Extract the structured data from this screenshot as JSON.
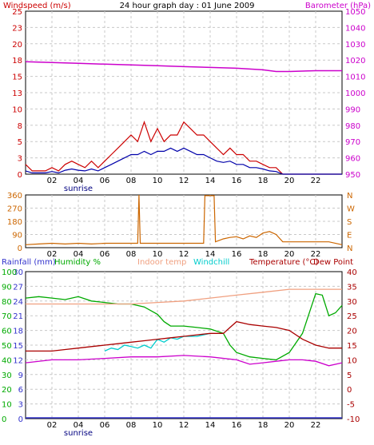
{
  "title": "24 hour graph day : 01 June 2009",
  "sunrise_label": "sunrise",
  "x_ticks": [
    "02",
    "04",
    "06",
    "08",
    "10",
    "12",
    "14",
    "16",
    "18",
    "20",
    "22"
  ],
  "colors": {
    "wind": "#cc0000",
    "gust": "#cc0000",
    "avg": "#0000aa",
    "baro": "#cc00cc",
    "dir": "#cc6600",
    "rain": "#3333cc",
    "humidity": "#00aa00",
    "indoor": "#f0a080",
    "windchill": "#00cccc",
    "temperature": "#aa0000",
    "dewpoint": "#cc00cc",
    "grid": "#c8c8c8",
    "axis_left": "#cc6600"
  },
  "chart_data": [
    {
      "type": "line",
      "panel": "wind_baro",
      "left_label": "Windspeed (m/s)",
      "right_label": "Barometer (hPa)",
      "left_ticks": [
        "0",
        "3",
        "5",
        "8",
        "10",
        "13",
        "15",
        "18",
        "20",
        "23",
        "25"
      ],
      "right_ticks": [
        "950",
        "960",
        "970",
        "980",
        "990",
        "1000",
        "1010",
        "1020",
        "1030",
        "1040",
        "1050"
      ],
      "ylim_left": [
        0,
        25
      ],
      "ylim_right": [
        950,
        1050
      ],
      "series": [
        {
          "key": "gust",
          "x": [
            0,
            0.5,
            1,
            1.5,
            2,
            2.5,
            3,
            3.5,
            4,
            4.5,
            5,
            5.5,
            6,
            6.5,
            7,
            7.5,
            8,
            8.5,
            9,
            9.5,
            10,
            10.5,
            11,
            11.5,
            12,
            12.5,
            13,
            13.5,
            14,
            14.5,
            15,
            15.5,
            16,
            16.5,
            17,
            17.5,
            18,
            18.5,
            19,
            19.5,
            20,
            21,
            22,
            23,
            24
          ],
          "y": [
            1.5,
            0.5,
            0.5,
            0.5,
            1,
            0.5,
            1.5,
            2,
            1.5,
            1,
            2,
            1,
            2,
            3,
            4,
            5,
            6,
            5,
            8,
            5,
            7,
            5,
            6,
            6,
            8,
            7,
            6,
            6,
            5,
            4,
            3,
            4,
            3,
            3,
            2,
            2,
            1.5,
            1,
            1,
            0,
            0,
            0,
            0,
            0,
            0
          ]
        },
        {
          "key": "avg",
          "x": [
            0,
            0.5,
            1,
            1.5,
            2,
            2.5,
            3,
            3.5,
            4,
            4.5,
            5,
            5.5,
            6,
            6.5,
            7,
            7.5,
            8,
            8.5,
            9,
            9.5,
            10,
            10.5,
            11,
            11.5,
            12,
            12.5,
            13,
            13.5,
            14,
            14.5,
            15,
            15.5,
            16,
            16.5,
            17,
            17.5,
            18,
            18.5,
            19,
            19.5,
            20,
            21,
            22,
            23,
            24
          ],
          "y": [
            0.5,
            0.2,
            0.2,
            0.2,
            0.4,
            0.2,
            0.6,
            0.8,
            0.6,
            0.5,
            0.8,
            0.5,
            1,
            1.5,
            2,
            2.5,
            3,
            3,
            3.5,
            3,
            3.5,
            3.5,
            4,
            3.5,
            4,
            3.5,
            3,
            3,
            2.5,
            2,
            1.8,
            2,
            1.5,
            1.5,
            1,
            1,
            0.8,
            0.5,
            0.4,
            0,
            0,
            0,
            0,
            0,
            0
          ]
        },
        {
          "key": "baro",
          "axis": "right",
          "x": [
            0,
            2,
            4,
            6,
            8,
            10,
            12,
            14,
            16,
            18,
            19,
            20,
            22,
            24
          ],
          "y": [
            1019,
            1018.5,
            1018,
            1017.5,
            1017,
            1016.5,
            1016,
            1015.5,
            1015,
            1014,
            1013,
            1013,
            1013.5,
            1013.5
          ]
        }
      ]
    },
    {
      "type": "line",
      "panel": "wind_direction",
      "left_ticks": [
        "0",
        "90",
        "180",
        "270",
        "360"
      ],
      "right_ticks": [
        "N",
        "E",
        "S",
        "W",
        "N"
      ],
      "ylim": [
        0,
        360
      ],
      "series": [
        {
          "key": "dir",
          "x": [
            0,
            1,
            2,
            3,
            4,
            5,
            6,
            7,
            8,
            8.5,
            8.6,
            8.7,
            9,
            10,
            11,
            12,
            13,
            13.5,
            13.6,
            14.3,
            14.4,
            15,
            15.5,
            16,
            16.5,
            17,
            17.5,
            18,
            18.5,
            19,
            19.5,
            20,
            21,
            22,
            23,
            24
          ],
          "y": [
            20,
            25,
            30,
            25,
            30,
            25,
            30,
            30,
            30,
            30,
            360,
            30,
            30,
            30,
            30,
            30,
            30,
            30,
            355,
            355,
            40,
            60,
            70,
            75,
            60,
            80,
            70,
            100,
            110,
            90,
            40,
            40,
            40,
            40,
            40,
            20
          ]
        }
      ]
    },
    {
      "type": "line",
      "panel": "temp_humidity",
      "legend": [
        "Rainfall (mm)",
        "Humidity %",
        "Indoor temp",
        "Windchill",
        "Temperature (°C)",
        "Dew Point"
      ],
      "rain_ticks": [
        "0",
        "3",
        "6",
        "9",
        "12",
        "15",
        "18",
        "21",
        "24",
        "27",
        "30"
      ],
      "humidity_ticks": [
        "0",
        "10",
        "20",
        "30",
        "40",
        "50",
        "60",
        "70",
        "80",
        "90",
        "100"
      ],
      "temp_ticks": [
        "-10",
        "-5",
        "0",
        "5",
        "10",
        "15",
        "20",
        "25",
        "30",
        "35",
        "40"
      ],
      "ylim_temp": [
        -10,
        40
      ],
      "ylim_humidity": [
        0,
        100
      ],
      "series": [
        {
          "key": "humidity",
          "axis": "humidity",
          "x": [
            0,
            1,
            2,
            3,
            4,
            5,
            6,
            7,
            8,
            9,
            10,
            10.5,
            11,
            12,
            13,
            14,
            15,
            15.5,
            16,
            17,
            18,
            19,
            20,
            21,
            22,
            22.5,
            23,
            23.5,
            24
          ],
          "y": [
            82,
            83,
            82,
            81,
            83,
            80,
            79,
            78,
            78,
            76,
            71,
            66,
            63,
            63,
            62,
            61,
            58,
            50,
            45,
            42,
            41,
            40,
            45,
            58,
            85,
            84,
            70,
            72,
            77
          ]
        },
        {
          "key": "indoor",
          "axis": "temp",
          "x": [
            0,
            2,
            4,
            6,
            8,
            10,
            12,
            14,
            16,
            18,
            20,
            22,
            24
          ],
          "y": [
            29,
            29,
            29,
            29,
            29,
            29.5,
            30,
            31,
            32,
            33,
            34,
            34,
            34
          ]
        },
        {
          "key": "windchill",
          "axis": "temp",
          "x": [
            6,
            6.5,
            7,
            7.5,
            8,
            8.5,
            9,
            9.5,
            10,
            10.5,
            11,
            11.5,
            12,
            13,
            14
          ],
          "y": [
            13,
            14,
            13.5,
            15,
            14.5,
            14,
            15,
            14,
            17,
            16,
            17.5,
            17,
            18,
            18,
            19
          ]
        },
        {
          "key": "temperature",
          "axis": "temp",
          "x": [
            0,
            1,
            2,
            3,
            4,
            5,
            6,
            7,
            8,
            9,
            10,
            11,
            12,
            13,
            14,
            15,
            15.5,
            16,
            17,
            18,
            19,
            20,
            21,
            22,
            23,
            24
          ],
          "y": [
            13,
            13,
            13,
            13.5,
            14,
            14.5,
            15,
            15.5,
            16,
            16.5,
            17,
            17.5,
            18,
            18.5,
            19,
            19,
            21,
            23,
            22,
            21.5,
            21,
            20,
            17,
            15,
            14,
            14
          ]
        },
        {
          "key": "dewpoint",
          "axis": "temp",
          "x": [
            0,
            2,
            4,
            6,
            8,
            10,
            12,
            14,
            16,
            17,
            18,
            19,
            20,
            21,
            22,
            23,
            24
          ],
          "y": [
            9,
            10,
            10,
            10.5,
            11,
            11,
            11.5,
            11,
            10,
            8.5,
            9,
            9.5,
            10,
            10,
            9.5,
            8,
            9
          ]
        }
      ]
    }
  ]
}
